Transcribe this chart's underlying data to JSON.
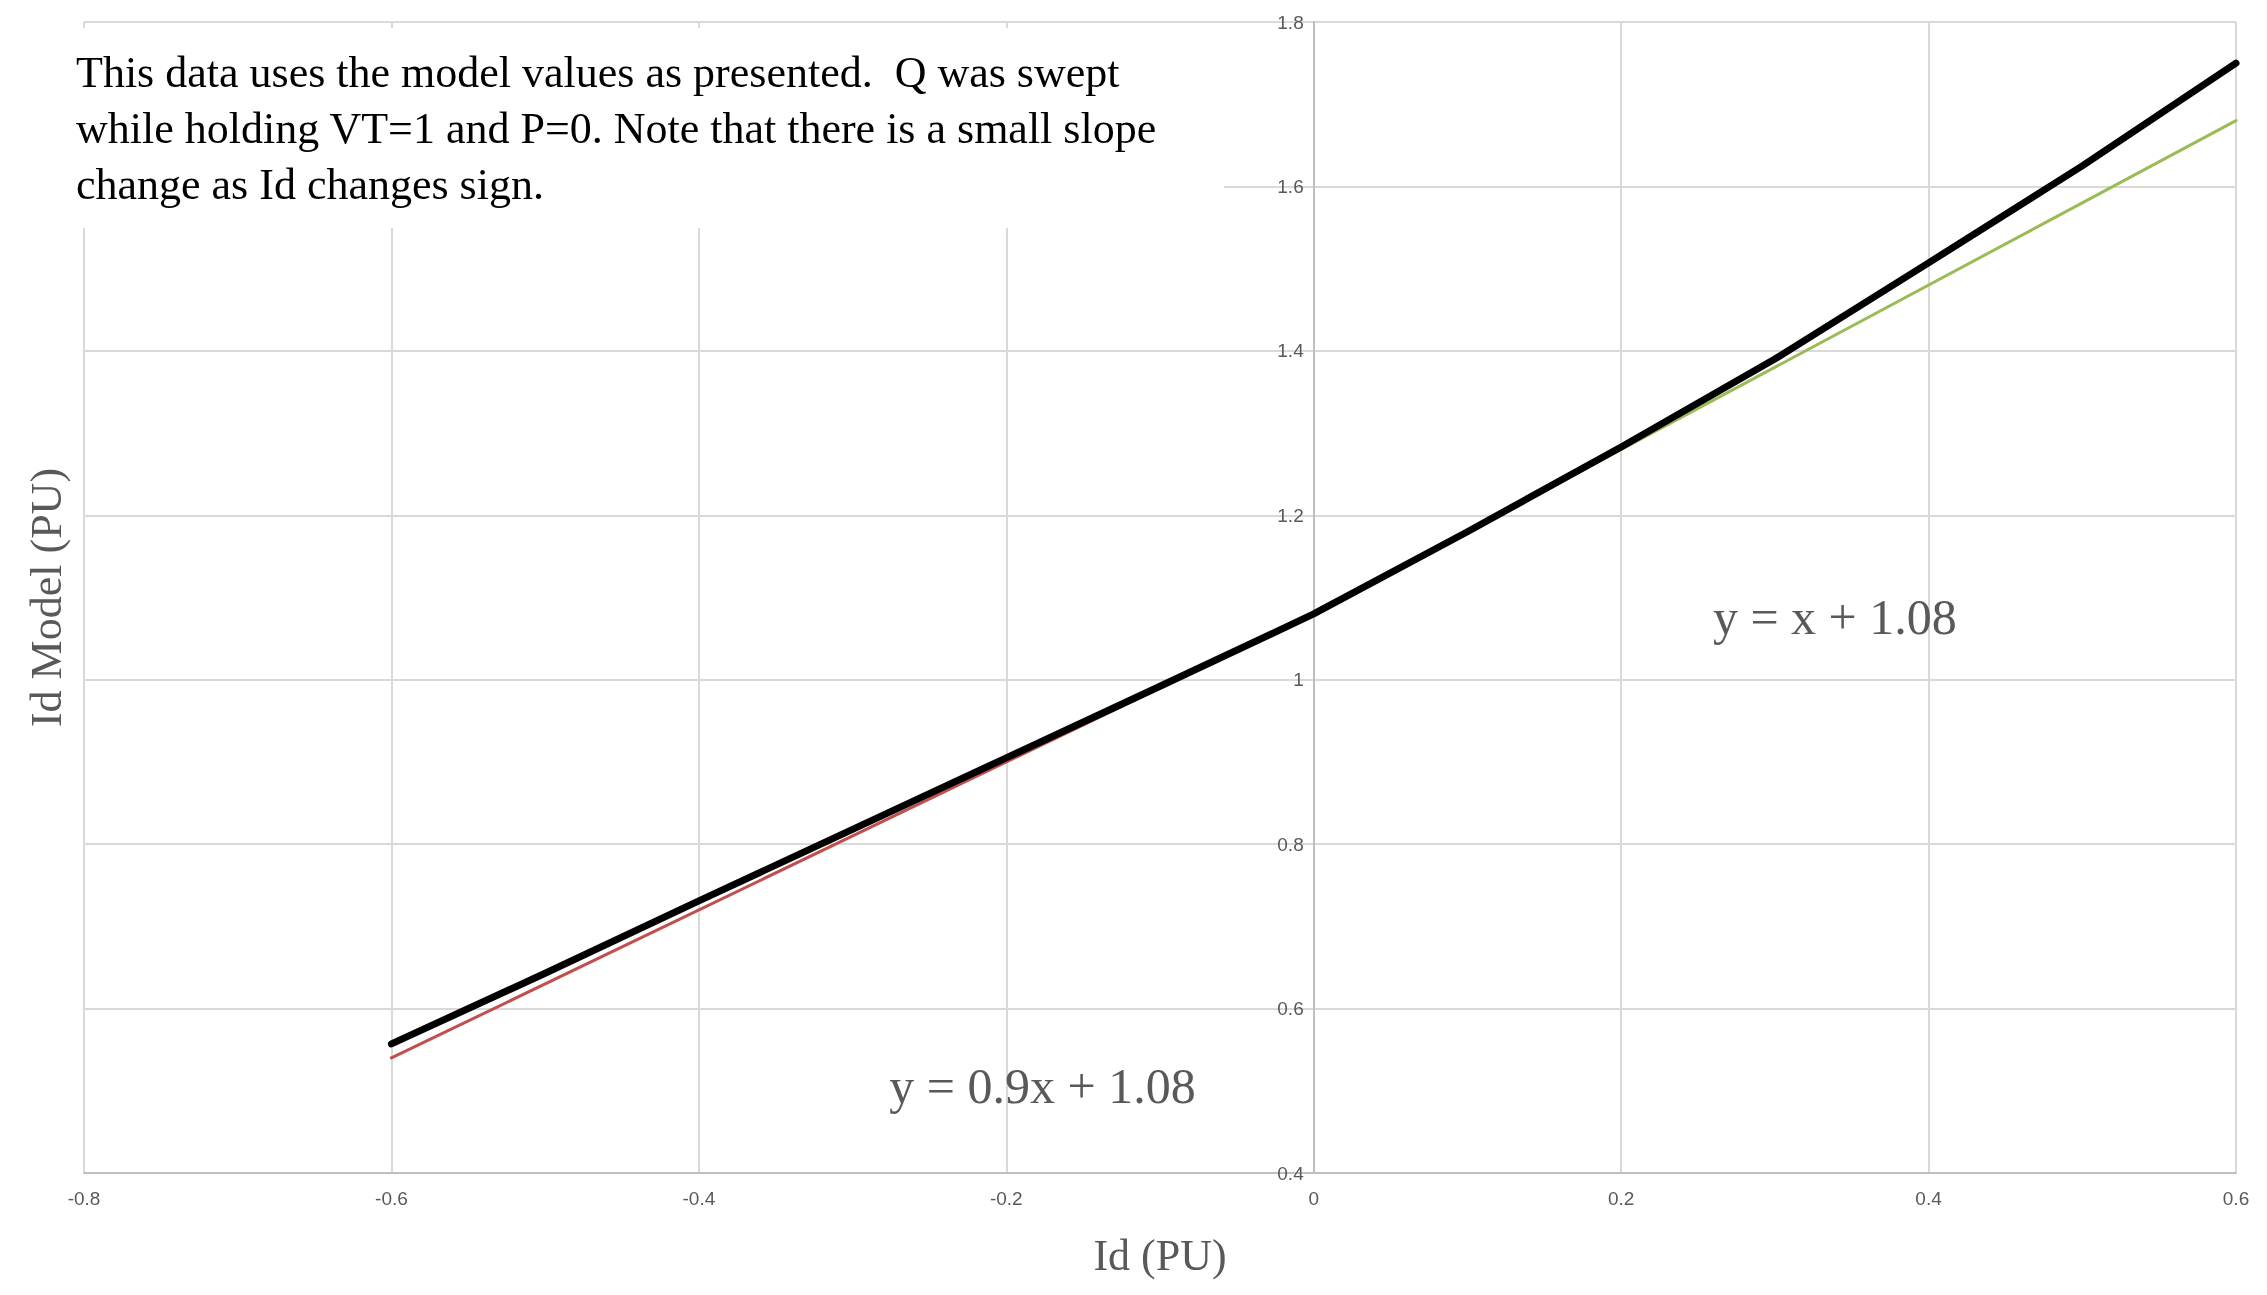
{
  "chart_data": {
    "type": "line",
    "xlabel": "Id (PU)",
    "ylabel": "Id Model (PU)",
    "xlim": [
      -0.8,
      0.6
    ],
    "xticks": [
      -0.8,
      -0.6,
      -0.4,
      -0.2,
      0,
      0.2,
      0.4,
      0.6
    ],
    "ylim": [
      0.4,
      1.8
    ],
    "yticks": [
      0.4,
      0.6,
      0.8,
      1,
      1.2,
      1.4,
      1.6,
      1.8
    ],
    "grid": true,
    "marker": "none",
    "line_style": "solid",
    "series": [
      {
        "color": "#c0504d",
        "x": [
          -0.6,
          0
        ],
        "values": [
          0.54,
          1.08
        ]
      },
      {
        "color": "#9bbb59",
        "x": [
          0,
          0.6
        ],
        "values": [
          1.08,
          1.68
        ]
      },
      {
        "color": "#000000",
        "x": [
          -0.6,
          -0.5,
          -0.4,
          -0.3,
          -0.2,
          -0.1,
          0,
          0.1,
          0.2,
          0.3,
          0.4,
          0.5,
          0.6
        ],
        "values": [
          0.557,
          0.643,
          0.731,
          0.818,
          0.905,
          0.992,
          1.08,
          1.18,
          1.283,
          1.39,
          1.507,
          1.625,
          1.75
        ]
      }
    ],
    "annotations": [
      "This data uses the model values as presented.  Q was swept while holding VT=1 and P=0. Note that there is a small slope change as Id changes sign.",
      "y = 0.9x + 1.08",
      "y = x + 1.08"
    ]
  }
}
